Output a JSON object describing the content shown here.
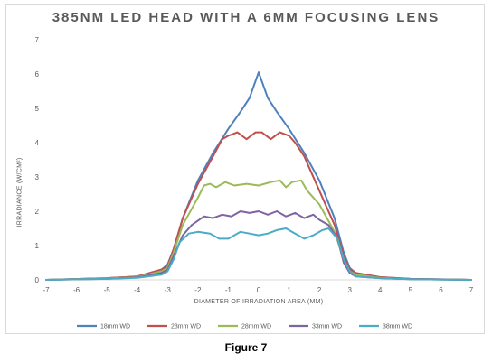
{
  "caption": "Figure 7",
  "chart_data": {
    "type": "line",
    "title": "385NM LED HEAD WITH A 6MM FOCUSING LENS",
    "xlabel": "DIAMETER OF IRRADIATION AREA (MM)",
    "ylabel": "IRRADIANCE (W/CM²)",
    "xlim": [
      -7,
      7
    ],
    "ylim": [
      0,
      7
    ],
    "xticks": [
      -7,
      -6,
      -5,
      -4,
      -3,
      -2,
      -1,
      0,
      1,
      2,
      3,
      4,
      5,
      6,
      7
    ],
    "yticks": [
      0,
      1,
      2,
      3,
      4,
      5,
      6,
      7
    ],
    "grid": false,
    "legend_position": "bottom",
    "series": [
      {
        "name": "18mm WD",
        "color": "#4F81BD",
        "x": [
          -7,
          -5,
          -4,
          -3.2,
          -3,
          -2.8,
          -2.5,
          -2,
          -1.5,
          -1,
          -0.6,
          -0.3,
          0,
          0.3,
          0.6,
          1,
          1.5,
          2,
          2.5,
          2.8,
          3,
          3.2,
          4,
          5,
          7
        ],
        "y": [
          0,
          0.05,
          0.1,
          0.3,
          0.45,
          0.9,
          1.8,
          2.9,
          3.7,
          4.4,
          4.9,
          5.3,
          6.05,
          5.3,
          4.9,
          4.4,
          3.7,
          2.9,
          1.8,
          0.8,
          0.35,
          0.2,
          0.08,
          0.03,
          0
        ]
      },
      {
        "name": "23mm WD",
        "color": "#C0504D",
        "x": [
          -7,
          -5,
          -4,
          -3.2,
          -3,
          -2.8,
          -2.5,
          -2,
          -1.5,
          -1.2,
          -1,
          -0.7,
          -0.4,
          -0.1,
          0.1,
          0.4,
          0.7,
          1,
          1.2,
          1.5,
          2,
          2.5,
          2.8,
          3,
          3.2,
          4,
          5,
          7
        ],
        "y": [
          0,
          0.05,
          0.1,
          0.3,
          0.4,
          0.9,
          1.8,
          2.8,
          3.6,
          4.1,
          4.2,
          4.3,
          4.1,
          4.3,
          4.3,
          4.1,
          4.3,
          4.2,
          4.0,
          3.6,
          2.6,
          1.6,
          0.7,
          0.3,
          0.2,
          0.08,
          0.03,
          0
        ]
      },
      {
        "name": "28mm WD",
        "color": "#9BBB59",
        "x": [
          -7,
          -5,
          -4,
          -3.2,
          -3,
          -2.8,
          -2.5,
          -2,
          -1.8,
          -1.6,
          -1.4,
          -1.1,
          -0.8,
          -0.4,
          0,
          0.4,
          0.7,
          0.9,
          1.1,
          1.4,
          1.6,
          1.8,
          2,
          2.5,
          2.8,
          3,
          3.2,
          4,
          5,
          7
        ],
        "y": [
          0,
          0.04,
          0.08,
          0.25,
          0.35,
          0.8,
          1.6,
          2.4,
          2.75,
          2.8,
          2.7,
          2.85,
          2.75,
          2.8,
          2.75,
          2.85,
          2.9,
          2.7,
          2.85,
          2.9,
          2.6,
          2.4,
          2.2,
          1.4,
          0.6,
          0.25,
          0.15,
          0.06,
          0.02,
          0
        ]
      },
      {
        "name": "33mm WD",
        "color": "#8064A2",
        "x": [
          -7,
          -5,
          -4,
          -3.2,
          -3,
          -2.8,
          -2.5,
          -2.2,
          -1.8,
          -1.5,
          -1.2,
          -0.9,
          -0.6,
          -0.3,
          0,
          0.3,
          0.6,
          0.9,
          1.2,
          1.5,
          1.8,
          2,
          2.3,
          2.6,
          2.8,
          3,
          3.2,
          4,
          5,
          7
        ],
        "y": [
          0,
          0.03,
          0.07,
          0.2,
          0.3,
          0.7,
          1.3,
          1.6,
          1.85,
          1.8,
          1.9,
          1.85,
          2.0,
          1.95,
          2.0,
          1.9,
          2.0,
          1.85,
          1.95,
          1.8,
          1.9,
          1.75,
          1.6,
          1.2,
          0.5,
          0.2,
          0.1,
          0.05,
          0.02,
          0
        ]
      },
      {
        "name": "38mm WD",
        "color": "#4BACC6",
        "x": [
          -7,
          -5,
          -4,
          -3.2,
          -3,
          -2.8,
          -2.6,
          -2.3,
          -2,
          -1.6,
          -1.3,
          -1,
          -0.6,
          -0.3,
          0,
          0.3,
          0.6,
          0.9,
          1.2,
          1.5,
          1.8,
          2.1,
          2.3,
          2.6,
          2.8,
          3,
          3.2,
          4,
          5,
          7
        ],
        "y": [
          0,
          0.03,
          0.06,
          0.15,
          0.25,
          0.6,
          1.1,
          1.35,
          1.4,
          1.35,
          1.2,
          1.2,
          1.4,
          1.35,
          1.3,
          1.35,
          1.45,
          1.5,
          1.35,
          1.2,
          1.3,
          1.45,
          1.5,
          1.2,
          0.6,
          0.25,
          0.1,
          0.05,
          0.02,
          0
        ]
      }
    ]
  }
}
